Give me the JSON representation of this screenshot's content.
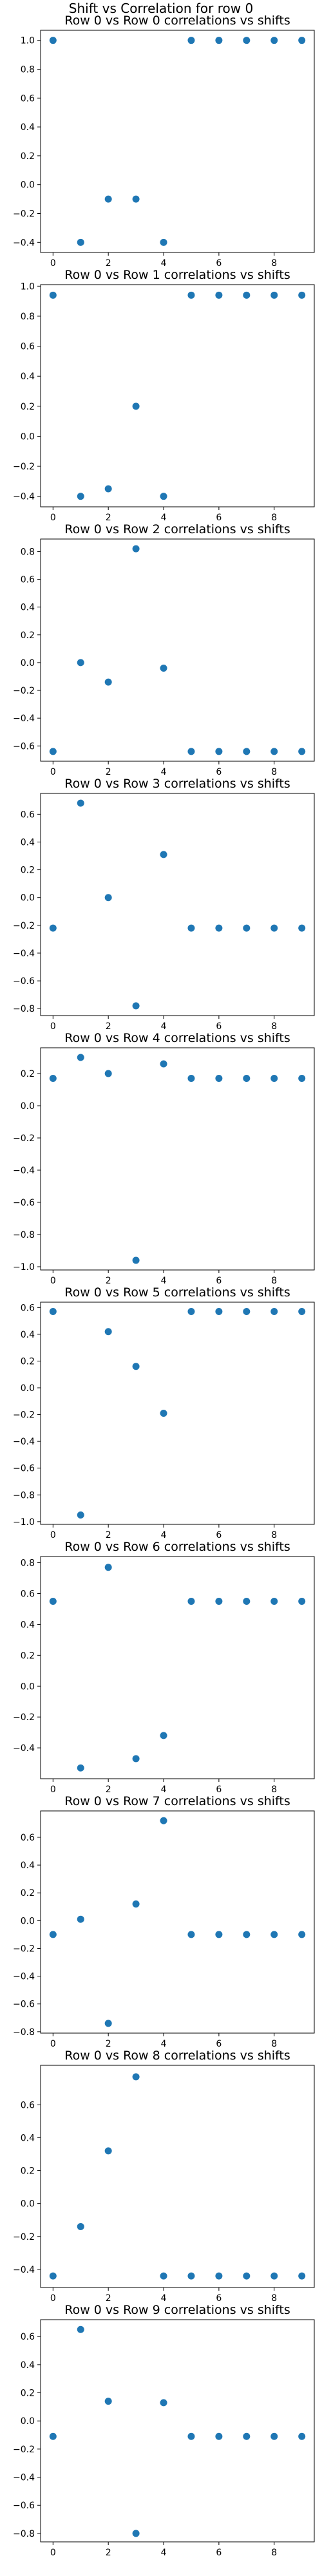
{
  "figure": {
    "suptitle": "Shift vs Correlation for row 0",
    "marker_color": "#1f77b4"
  },
  "chart_data": [
    {
      "type": "scatter",
      "title": "Row 0 vs Row 0 correlations vs shifts",
      "xlabel": "",
      "ylabel": "",
      "x": [
        0,
        1,
        2,
        3,
        4,
        5,
        6,
        7,
        8,
        9
      ],
      "y": [
        1.0,
        -0.4,
        -0.1,
        -0.1,
        -0.4,
        1.0,
        1.0,
        1.0,
        1.0,
        1.0
      ],
      "xlim": [
        -0.45,
        9.45
      ],
      "ylim": [
        -0.47,
        1.07
      ],
      "xticks": [
        0,
        2,
        4,
        6,
        8
      ],
      "yticks": [
        -0.4,
        -0.2,
        0.0,
        0.2,
        0.4,
        0.6,
        0.8,
        1.0
      ],
      "ytick_labels": [
        "−0.4",
        "−0.2",
        "0.0",
        "0.2",
        "0.4",
        "0.6",
        "0.8",
        "1.0"
      ]
    },
    {
      "type": "scatter",
      "title": "Row 0 vs Row 1 correlations vs shifts",
      "xlabel": "",
      "ylabel": "",
      "x": [
        0,
        1,
        2,
        3,
        4,
        5,
        6,
        7,
        8,
        9
      ],
      "y": [
        0.94,
        -0.4,
        -0.35,
        0.2,
        -0.4,
        0.94,
        0.94,
        0.94,
        0.94,
        0.94
      ],
      "xlim": [
        -0.45,
        9.45
      ],
      "ylim": [
        -0.47,
        1.01
      ],
      "xticks": [
        0,
        2,
        4,
        6,
        8
      ],
      "yticks": [
        -0.4,
        -0.2,
        0.0,
        0.2,
        0.4,
        0.6,
        0.8,
        1.0
      ],
      "ytick_labels": [
        "−0.4",
        "−0.2",
        "0.0",
        "0.2",
        "0.4",
        "0.6",
        "0.8",
        "1.0"
      ]
    },
    {
      "type": "scatter",
      "title": "Row 0 vs Row 2 correlations vs shifts",
      "xlabel": "",
      "ylabel": "",
      "x": [
        0,
        1,
        2,
        3,
        4,
        5,
        6,
        7,
        8,
        9
      ],
      "y": [
        -0.64,
        0.0,
        -0.14,
        0.82,
        -0.04,
        -0.64,
        -0.64,
        -0.64,
        -0.64,
        -0.64
      ],
      "xlim": [
        -0.45,
        9.45
      ],
      "ylim": [
        -0.71,
        0.89
      ],
      "xticks": [
        0,
        2,
        4,
        6,
        8
      ],
      "yticks": [
        -0.6,
        -0.4,
        -0.2,
        0.0,
        0.2,
        0.4,
        0.6,
        0.8
      ],
      "ytick_labels": [
        "−0.6",
        "−0.4",
        "−0.2",
        "0.0",
        "0.2",
        "0.4",
        "0.6",
        "0.8"
      ]
    },
    {
      "type": "scatter",
      "title": "Row 0 vs Row 3 correlations vs shifts",
      "xlabel": "",
      "ylabel": "",
      "x": [
        0,
        1,
        2,
        3,
        4,
        5,
        6,
        7,
        8,
        9
      ],
      "y": [
        -0.22,
        0.68,
        0.0,
        -0.78,
        0.31,
        -0.22,
        -0.22,
        -0.22,
        -0.22,
        -0.22
      ],
      "xlim": [
        -0.45,
        9.45
      ],
      "ylim": [
        -0.85,
        0.75
      ],
      "xticks": [
        0,
        2,
        4,
        6,
        8
      ],
      "yticks": [
        -0.8,
        -0.6,
        -0.4,
        -0.2,
        0.0,
        0.2,
        0.4,
        0.6
      ],
      "ytick_labels": [
        "−0.8",
        "−0.6",
        "−0.4",
        "−0.2",
        "0.0",
        "0.2",
        "0.4",
        "0.6"
      ]
    },
    {
      "type": "scatter",
      "title": "Row 0 vs Row 4 correlations vs shifts",
      "xlabel": "",
      "ylabel": "",
      "x": [
        0,
        1,
        2,
        3,
        4,
        5,
        6,
        7,
        8,
        9
      ],
      "y": [
        0.17,
        0.3,
        0.2,
        -0.96,
        0.26,
        0.17,
        0.17,
        0.17,
        0.17,
        0.17
      ],
      "xlim": [
        -0.45,
        9.45
      ],
      "ylim": [
        -1.02,
        0.36
      ],
      "xticks": [
        0,
        2,
        4,
        6,
        8
      ],
      "yticks": [
        -1.0,
        -0.8,
        -0.6,
        -0.4,
        -0.2,
        0.0,
        0.2
      ],
      "ytick_labels": [
        "−1.0",
        "−0.8",
        "−0.6",
        "−0.4",
        "−0.2",
        "0.0",
        "0.2"
      ]
    },
    {
      "type": "scatter",
      "title": "Row 0 vs Row 5 correlations vs shifts",
      "xlabel": "",
      "ylabel": "",
      "x": [
        0,
        1,
        2,
        3,
        4,
        5,
        6,
        7,
        8,
        9
      ],
      "y": [
        0.57,
        -0.95,
        0.42,
        0.16,
        -0.19,
        0.57,
        0.57,
        0.57,
        0.57,
        0.57
      ],
      "xlim": [
        -0.45,
        9.45
      ],
      "ylim": [
        -1.02,
        0.64
      ],
      "xticks": [
        0,
        2,
        4,
        6,
        8
      ],
      "yticks": [
        -1.0,
        -0.8,
        -0.6,
        -0.4,
        -0.2,
        0.0,
        0.2,
        0.4,
        0.6
      ],
      "ytick_labels": [
        "−1.0",
        "−0.8",
        "−0.6",
        "−0.4",
        "−0.2",
        "0.0",
        "0.2",
        "0.4",
        "0.6"
      ]
    },
    {
      "type": "scatter",
      "title": "Row 0 vs Row 6 correlations vs shifts",
      "xlabel": "",
      "ylabel": "",
      "x": [
        0,
        1,
        2,
        3,
        4,
        5,
        6,
        7,
        8,
        9
      ],
      "y": [
        0.55,
        -0.53,
        0.77,
        -0.47,
        -0.32,
        0.55,
        0.55,
        0.55,
        0.55,
        0.55
      ],
      "xlim": [
        -0.45,
        9.45
      ],
      "ylim": [
        -0.6,
        0.84
      ],
      "xticks": [
        0,
        2,
        4,
        6,
        8
      ],
      "yticks": [
        -0.4,
        -0.2,
        0.0,
        0.2,
        0.4,
        0.6,
        0.8
      ],
      "ytick_labels": [
        "−0.4",
        "−0.2",
        "0.0",
        "0.2",
        "0.4",
        "0.6",
        "0.8"
      ]
    },
    {
      "type": "scatter",
      "title": "Row 0 vs Row 7 correlations vs shifts",
      "xlabel": "",
      "ylabel": "",
      "x": [
        0,
        1,
        2,
        3,
        4,
        5,
        6,
        7,
        8,
        9
      ],
      "y": [
        -0.1,
        0.01,
        -0.74,
        0.12,
        0.72,
        -0.1,
        -0.1,
        -0.1,
        -0.1,
        -0.1
      ],
      "xlim": [
        -0.45,
        9.45
      ],
      "ylim": [
        -0.81,
        0.79
      ],
      "xticks": [
        0,
        2,
        4,
        6,
        8
      ],
      "yticks": [
        -0.8,
        -0.6,
        -0.4,
        -0.2,
        0.0,
        0.2,
        0.4,
        0.6
      ],
      "ytick_labels": [
        "−0.8",
        "−0.6",
        "−0.4",
        "−0.2",
        "0.0",
        "0.2",
        "0.4",
        "0.6"
      ]
    },
    {
      "type": "scatter",
      "title": "Row 0 vs Row 8 correlations vs shifts",
      "xlabel": "",
      "ylabel": "",
      "x": [
        0,
        1,
        2,
        3,
        4,
        5,
        6,
        7,
        8,
        9
      ],
      "y": [
        -0.44,
        -0.14,
        0.32,
        0.77,
        -0.44,
        -0.44,
        -0.44,
        -0.44,
        -0.44,
        -0.44
      ],
      "xlim": [
        -0.45,
        9.45
      ],
      "ylim": [
        -0.51,
        0.84
      ],
      "xticks": [
        0,
        2,
        4,
        6,
        8
      ],
      "yticks": [
        -0.4,
        -0.2,
        0.0,
        0.2,
        0.4,
        0.6
      ],
      "ytick_labels": [
        "−0.4",
        "−0.2",
        "0.0",
        "0.2",
        "0.4",
        "0.6"
      ]
    },
    {
      "type": "scatter",
      "title": "Row 0 vs Row 9 correlations vs shifts",
      "xlabel": "",
      "ylabel": "",
      "x": [
        0,
        1,
        2,
        3,
        4,
        5,
        6,
        7,
        8,
        9
      ],
      "y": [
        -0.11,
        0.65,
        0.14,
        -0.8,
        0.13,
        -0.11,
        -0.11,
        -0.11,
        -0.11,
        -0.11
      ],
      "xlim": [
        -0.45,
        9.45
      ],
      "ylim": [
        -0.86,
        0.72
      ],
      "xticks": [
        0,
        2,
        4,
        6,
        8
      ],
      "yticks": [
        -0.8,
        -0.6,
        -0.4,
        -0.2,
        0.0,
        0.2,
        0.4,
        0.6
      ],
      "ytick_labels": [
        "−0.8",
        "−0.6",
        "−0.4",
        "−0.2",
        "0.0",
        "0.2",
        "0.4",
        "0.6"
      ]
    }
  ]
}
